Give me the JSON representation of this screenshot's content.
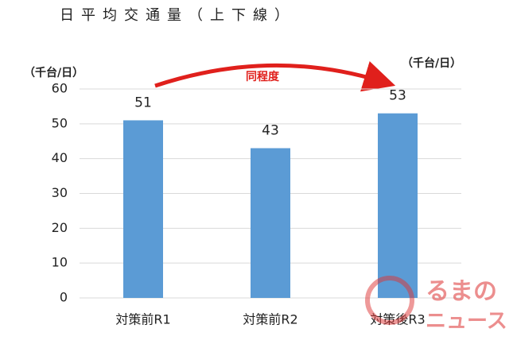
{
  "chart_data": {
    "type": "bar",
    "title": "日平均交通量（上下線）",
    "ylabel": "（千台/日）",
    "annotation": "同程度",
    "categories": [
      "対策前R1",
      "対策前R2",
      "対策後R3"
    ],
    "values": [
      51,
      43,
      53
    ],
    "color": "#5b9bd5",
    "ylim": [
      0,
      60
    ],
    "yticks": [
      0,
      10,
      20,
      30,
      40,
      50,
      60
    ],
    "grid": true
  },
  "watermark_lines": [
    "るまの",
    "ニュース"
  ]
}
